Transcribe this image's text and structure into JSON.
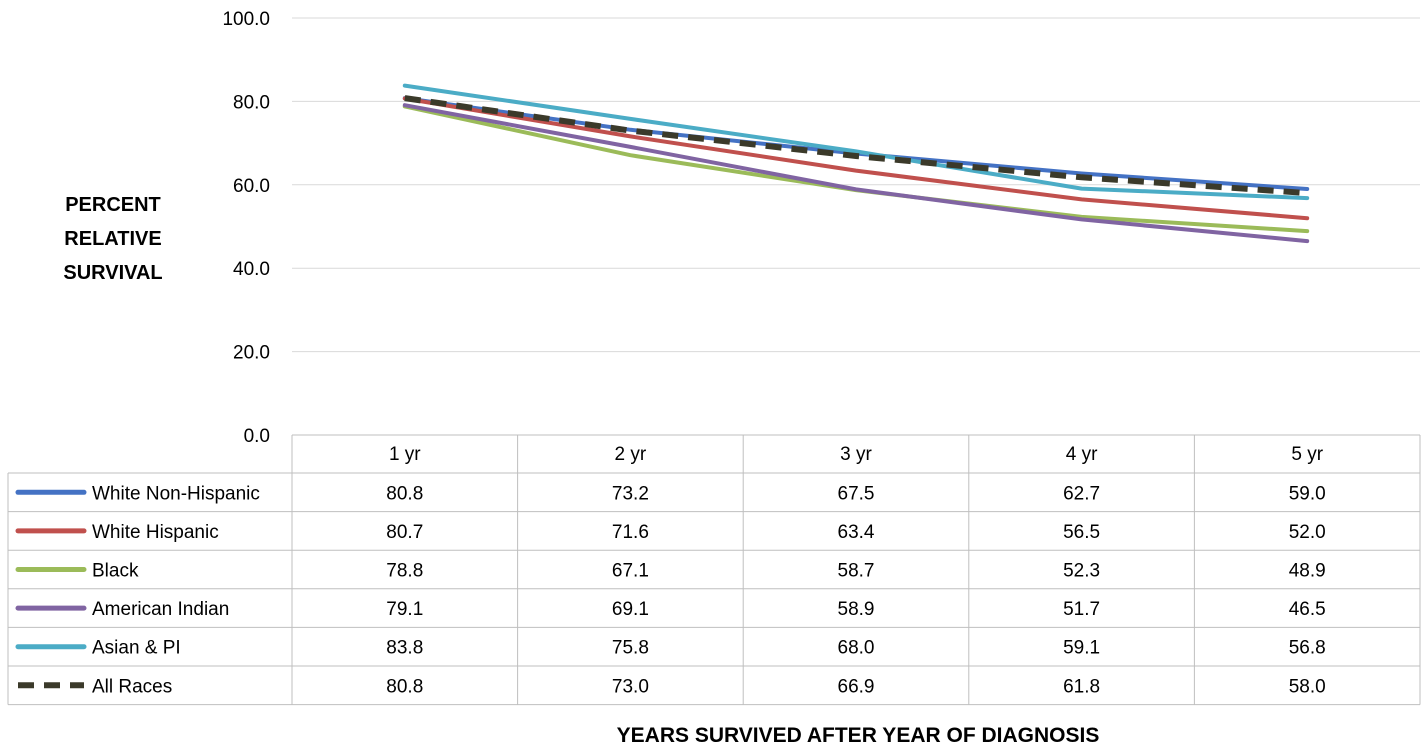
{
  "chart_data": {
    "type": "line",
    "title": "",
    "ylabel_lines": [
      "PERCENT",
      "RELATIVE",
      "SURVIVAL"
    ],
    "xlabel": "YEARS SURVIVED AFTER YEAR OF DIAGNOSIS",
    "ylim": [
      0,
      100
    ],
    "yticks": [
      "0.0",
      "20.0",
      "40.0",
      "60.0",
      "80.0",
      "100.0"
    ],
    "categories": [
      "1 yr",
      "2 yr",
      "3 yr",
      "4 yr",
      "5 yr"
    ],
    "grid": true,
    "legend": "data-table",
    "series": [
      {
        "name": "White Non-Hispanic",
        "color": "#4472c4",
        "dashed": false,
        "values": [
          80.8,
          73.2,
          67.5,
          62.7,
          59.0
        ],
        "labels": [
          "80.8",
          "73.2",
          "67.5",
          "62.7",
          "59.0"
        ]
      },
      {
        "name": "White Hispanic",
        "color": "#c0504d",
        "dashed": false,
        "values": [
          80.7,
          71.6,
          63.4,
          56.5,
          52.0
        ],
        "labels": [
          "80.7",
          "71.6",
          "63.4",
          "56.5",
          "52.0"
        ]
      },
      {
        "name": "Black",
        "color": "#9bbb59",
        "dashed": false,
        "values": [
          78.8,
          67.1,
          58.7,
          52.3,
          48.9
        ],
        "labels": [
          "78.8",
          "67.1",
          "58.7",
          "52.3",
          "48.9"
        ]
      },
      {
        "name": "American Indian",
        "color": "#8064a2",
        "dashed": false,
        "values": [
          79.1,
          69.1,
          58.9,
          51.7,
          46.5
        ],
        "labels": [
          "79.1",
          "69.1",
          "58.9",
          "51.7",
          "46.5"
        ]
      },
      {
        "name": "Asian & PI",
        "color": "#4bacc6",
        "dashed": false,
        "values": [
          83.8,
          75.8,
          68.0,
          59.1,
          56.8
        ],
        "labels": [
          "83.8",
          "75.8",
          "68.0",
          "59.1",
          "56.8"
        ]
      },
      {
        "name": "All Races",
        "color": "#3b3a2a",
        "dashed": true,
        "values": [
          80.8,
          73.0,
          66.9,
          61.8,
          58.0
        ],
        "labels": [
          "80.8",
          "73.0",
          "66.9",
          "61.8",
          "58.0"
        ]
      }
    ]
  }
}
